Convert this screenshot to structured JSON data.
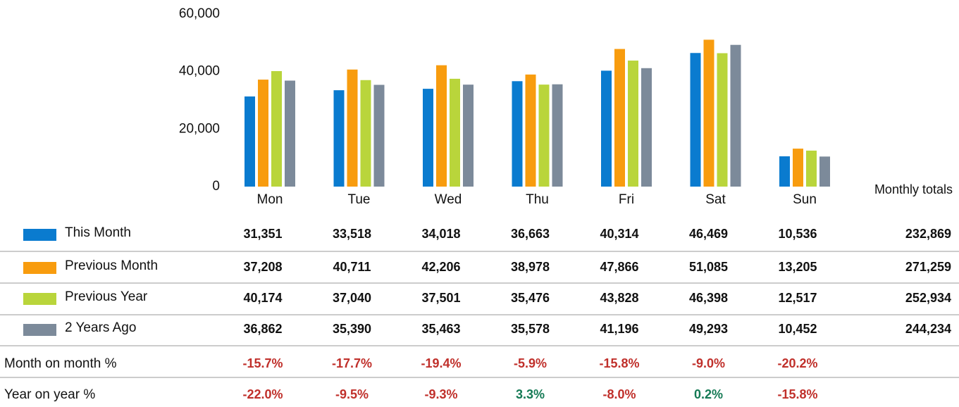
{
  "chart_data": {
    "type": "bar",
    "categories": [
      "Mon",
      "Tue",
      "Wed",
      "Thu",
      "Fri",
      "Sat",
      "Sun"
    ],
    "ylim": [
      0,
      60000
    ],
    "yticks": [
      0,
      {
        "value": 20000,
        "label": "20,000"
      },
      {
        "value": 40000,
        "label": "40,000"
      },
      {
        "value": 60000,
        "label": "60,000"
      }
    ],
    "grid": false,
    "totals_header": "Monthly totals",
    "series": [
      {
        "name": "This Month",
        "color": "#0a7bcf",
        "values": [
          31351,
          33518,
          34018,
          36663,
          40314,
          46469,
          10536
        ],
        "value_labels": [
          "31,351",
          "33,518",
          "34,018",
          "36,663",
          "40,314",
          "46,469",
          "10,536"
        ],
        "total": "232,869"
      },
      {
        "name": "Previous Month",
        "color": "#f89c0e",
        "values": [
          37208,
          40711,
          42206,
          38978,
          47866,
          51085,
          13205
        ],
        "value_labels": [
          "37,208",
          "40,711",
          "42,206",
          "38,978",
          "47,866",
          "51,085",
          "13,205"
        ],
        "total": "271,259"
      },
      {
        "name": "Previous Year",
        "color": "#b9d53b",
        "values": [
          40174,
          37040,
          37501,
          35476,
          43828,
          46398,
          12517
        ],
        "value_labels": [
          "40,174",
          "37,040",
          "37,501",
          "35,476",
          "43,828",
          "46,398",
          "12,517"
        ],
        "total": "252,934"
      },
      {
        "name": "2 Years Ago",
        "color": "#7c8a9a",
        "values": [
          36862,
          35390,
          35463,
          35578,
          41196,
          49293,
          10452
        ],
        "value_labels": [
          "36,862",
          "35,390",
          "35,463",
          "35,578",
          "41,196",
          "49,293",
          "10,452"
        ],
        "total": "244,234"
      }
    ],
    "change_rows": [
      {
        "name": "Month on month %",
        "values": [
          -15.7,
          -17.7,
          -19.4,
          -5.9,
          -15.8,
          -9.0,
          -20.2
        ],
        "value_labels": [
          "-15.7%",
          "-17.7%",
          "-19.4%",
          "-5.9%",
          "-15.8%",
          "-9.0%",
          "-20.2%"
        ]
      },
      {
        "name": "Year on year %",
        "values": [
          -22.0,
          -9.5,
          -9.3,
          3.3,
          -8.0,
          0.2,
          -15.8
        ],
        "value_labels": [
          "-22.0%",
          "-9.5%",
          "-9.3%",
          "3.3%",
          "-8.0%",
          "0.2%",
          "-15.8%"
        ]
      }
    ],
    "change_colors": {
      "negative": "#c0302b",
      "positive": "#157a55"
    }
  }
}
